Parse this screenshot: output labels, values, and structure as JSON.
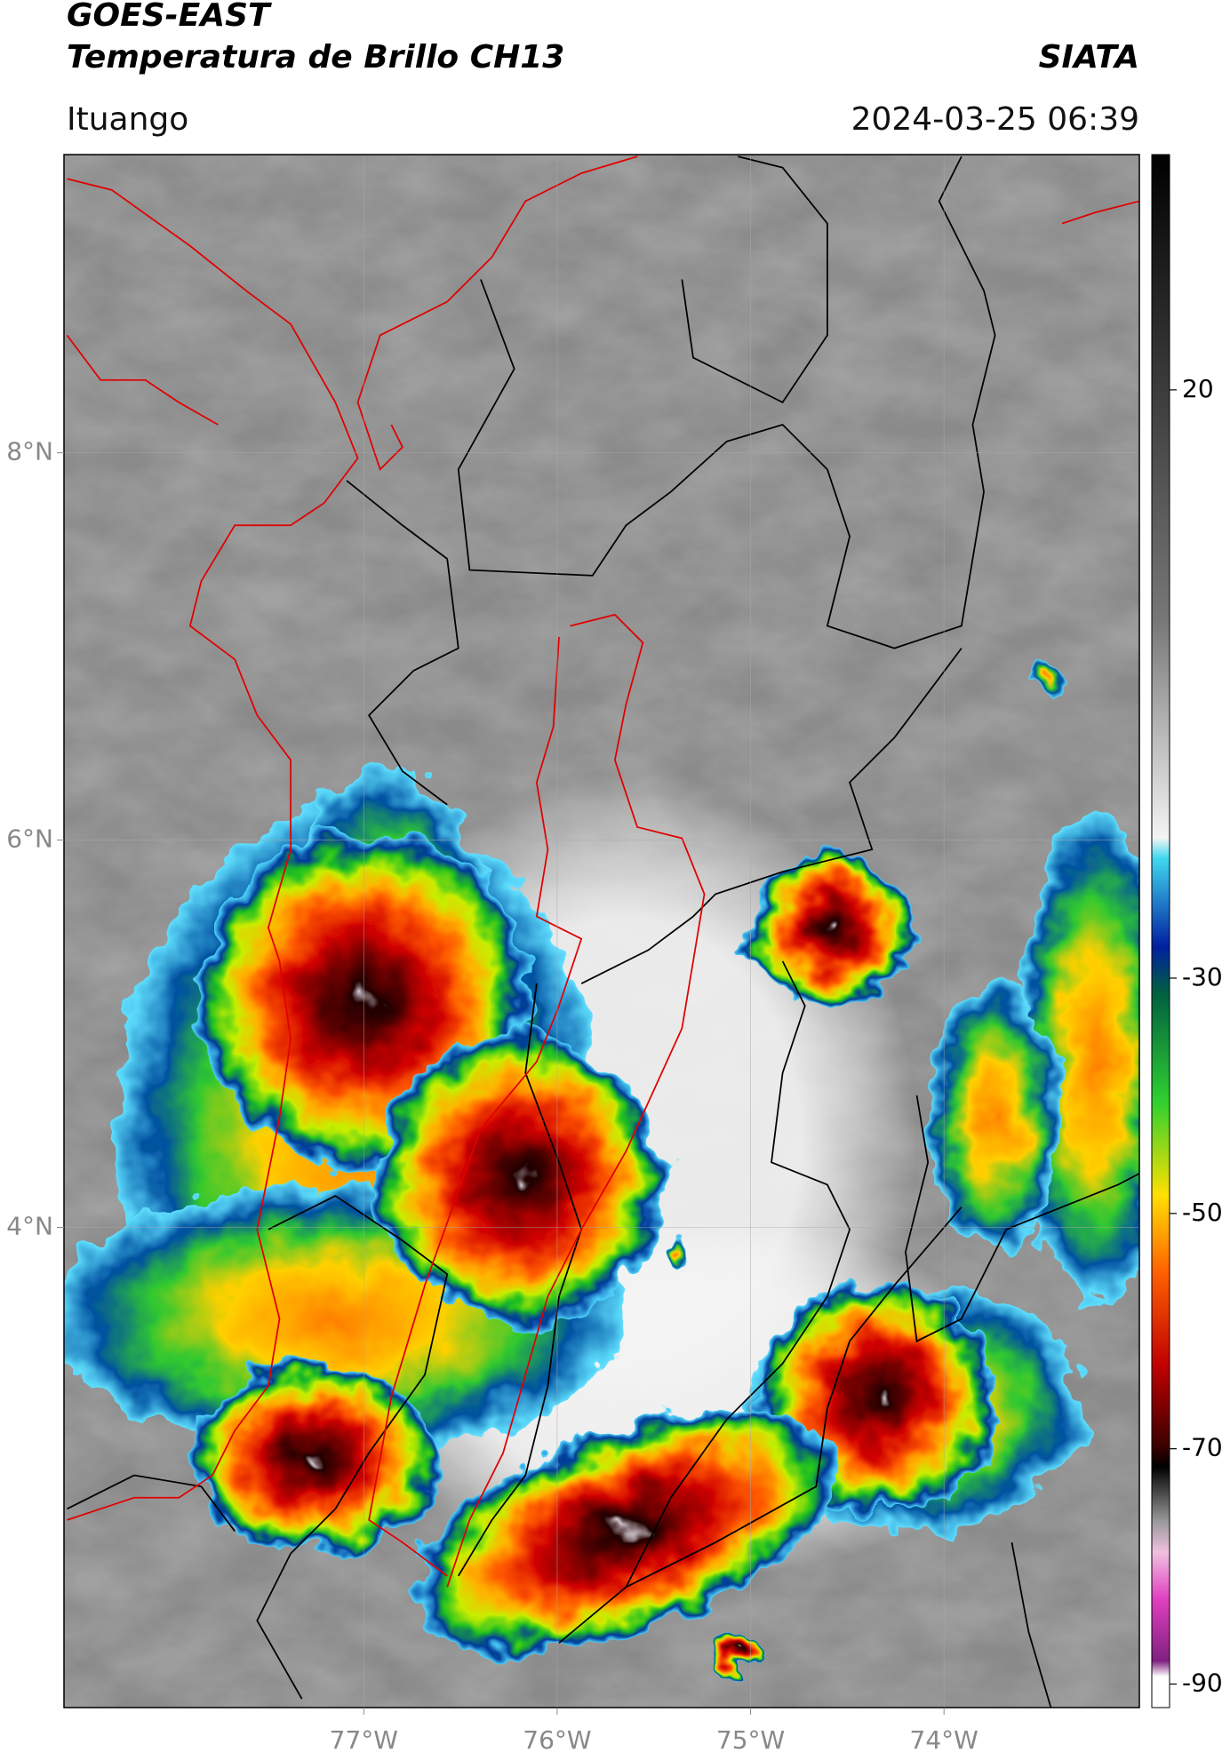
{
  "header": {
    "title": "GOES-EAST",
    "subtitle": "Temperatura de Brillo CH13",
    "organization": "SIATA",
    "location": "Ituango",
    "timestamp": "2024-03-25 06:39"
  },
  "map": {
    "xlim": [
      -78.55,
      -72.99
    ],
    "ylim": [
      1.52,
      9.54
    ],
    "xticks": [
      {
        "value": -77,
        "label": "77°W"
      },
      {
        "value": -76,
        "label": "76°W"
      },
      {
        "value": -75,
        "label": "75°W"
      },
      {
        "value": -74,
        "label": "74°W"
      }
    ],
    "yticks": [
      {
        "value": 4,
        "label": "4°N"
      },
      {
        "value": 6,
        "label": "6°N"
      },
      {
        "value": 8,
        "label": "8°N"
      }
    ],
    "grid": true
  },
  "colorbar": {
    "lim": [
      -92,
      40
    ],
    "ticks": [
      20,
      -30,
      -50,
      -70,
      -90
    ]
  }
}
